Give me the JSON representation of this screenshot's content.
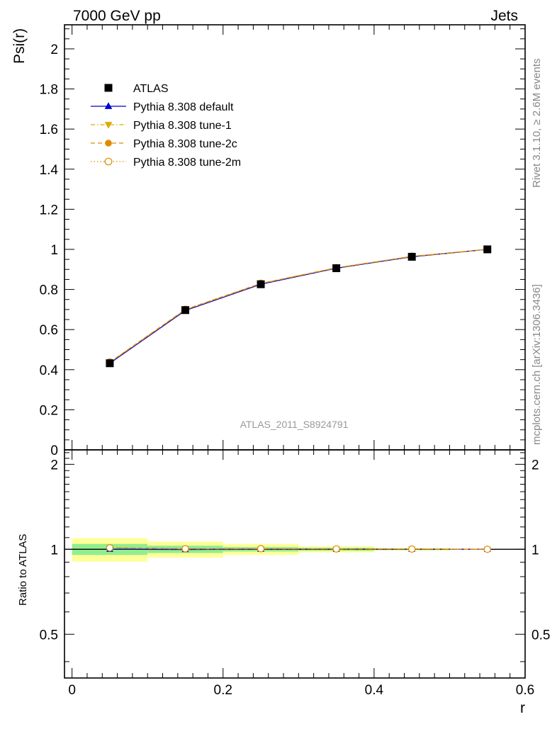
{
  "header": {
    "left": "7000 GeV pp",
    "right": "Jets"
  },
  "side_labels": {
    "rivet": "Rivet 3.1.10, ≥ 2.6M events",
    "mcplots": "mcplots.cern.ch [arXiv:1306.3436]"
  },
  "watermark": "ATLAS_2011_S8924791",
  "chart_data": {
    "type": "line",
    "title": "",
    "xlabel": "r",
    "ylabel": "Psi(r)",
    "ratio_ylabel": "Ratio to ATLAS",
    "xlim": [
      -0.01,
      0.6
    ],
    "ylim": [
      0,
      2.12
    ],
    "ratio_ylim": [
      0.35,
      2.25
    ],
    "grid": false,
    "legend_position": "top-left",
    "x": [
      0.05,
      0.15,
      0.25,
      0.35,
      0.45,
      0.55
    ],
    "x_bins": [
      [
        0.0,
        0.1
      ],
      [
        0.1,
        0.2
      ],
      [
        0.2,
        0.3
      ],
      [
        0.3,
        0.4
      ],
      [
        0.4,
        0.5
      ],
      [
        0.5,
        0.6
      ]
    ],
    "x_ticks": [
      0,
      0.2,
      0.4,
      0.6
    ],
    "x_tick_labels": [
      "0",
      "0.2",
      "0.4",
      "0.6"
    ],
    "y_ticks": [
      0,
      0.2,
      0.4,
      0.6,
      0.8,
      1,
      1.2,
      1.4,
      1.6,
      1.8,
      2
    ],
    "y_tick_labels": [
      "0",
      "0.2",
      "0.4",
      "0.6",
      "0.8",
      "1",
      "1.2",
      "1.4",
      "1.6",
      "1.8",
      "2"
    ],
    "ratio_ticks": [
      0.5,
      1,
      2
    ],
    "ratio_tick_labels": [
      "0.5",
      "1",
      "2"
    ],
    "series": [
      {
        "name": "ATLAS",
        "values": [
          0.432,
          0.697,
          0.826,
          0.906,
          0.963,
          1.0
        ],
        "color": "#000000",
        "marker": "square",
        "line": "none"
      },
      {
        "name": "Pythia 8.308 default",
        "values": [
          0.432,
          0.695,
          0.826,
          0.906,
          0.963,
          1.0
        ],
        "color": "#0000cc",
        "marker": "triangle-up",
        "line": "solid"
      },
      {
        "name": "Pythia 8.308 tune-1",
        "values": [
          0.436,
          0.699,
          0.829,
          0.908,
          0.965,
          1.0
        ],
        "color": "#ddaa00",
        "marker": "triangle-down",
        "line": "dashdot"
      },
      {
        "name": "Pythia 8.308 tune-2c",
        "values": [
          0.437,
          0.7,
          0.83,
          0.908,
          0.965,
          1.0
        ],
        "color": "#e08a00",
        "marker": "circle",
        "line": "dashed"
      },
      {
        "name": "Pythia 8.308 tune-2m",
        "values": [
          0.437,
          0.7,
          0.83,
          0.908,
          0.965,
          1.0
        ],
        "color": "#e08a00",
        "marker": "circle-open",
        "line": "dotted"
      }
    ],
    "ratio": {
      "reference": "ATLAS",
      "series": [
        {
          "name": "Pythia 8.308 default",
          "values": [
            1.0,
            0.998,
            1.0,
            1.0,
            1.0,
            1.0
          ]
        },
        {
          "name": "Pythia 8.308 tune-1",
          "values": [
            1.01,
            1.003,
            1.004,
            1.002,
            1.002,
            1.0
          ]
        },
        {
          "name": "Pythia 8.308 tune-2c",
          "values": [
            1.012,
            1.005,
            1.005,
            1.003,
            1.002,
            1.0
          ]
        },
        {
          "name": "Pythia 8.308 tune-2m",
          "values": [
            1.012,
            1.005,
            1.005,
            1.003,
            1.002,
            1.0
          ]
        }
      ],
      "stat_band": [
        [
          0.955,
          1.045
        ],
        [
          0.97,
          1.03
        ],
        [
          0.982,
          1.018
        ],
        [
          0.988,
          1.012
        ],
        [
          0.994,
          1.006
        ],
        [
          1.0,
          1.0
        ]
      ],
      "total_band": [
        [
          0.905,
          1.095
        ],
        [
          0.935,
          1.065
        ],
        [
          0.955,
          1.045
        ],
        [
          0.975,
          1.025
        ],
        [
          0.99,
          1.01
        ],
        [
          1.0,
          1.0
        ]
      ],
      "stat_color": "#90ee90",
      "total_color": "#ffff99"
    }
  }
}
